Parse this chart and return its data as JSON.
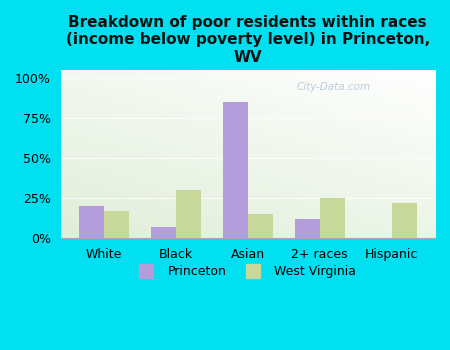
{
  "categories": [
    "White",
    "Black",
    "Asian",
    "2+ races",
    "Hispanic"
  ],
  "princeton_values": [
    20,
    7,
    85,
    12,
    0
  ],
  "wv_values": [
    17,
    30,
    15,
    25,
    22
  ],
  "princeton_color": "#b39ddb",
  "wv_color": "#c8d89a",
  "title": "Breakdown of poor residents within races\n(income below poverty level) in Princeton,\nWV",
  "title_fontsize": 11,
  "ylabel_ticks": [
    "0%",
    "25%",
    "50%",
    "75%",
    "100%"
  ],
  "ytick_values": [
    0,
    25,
    50,
    75,
    100
  ],
  "ylim": [
    0,
    105
  ],
  "background_outer": "#00e0f0",
  "legend_princeton": "Princeton",
  "legend_wv": "West Virginia",
  "bar_width": 0.35,
  "watermark": "City-Data.com"
}
